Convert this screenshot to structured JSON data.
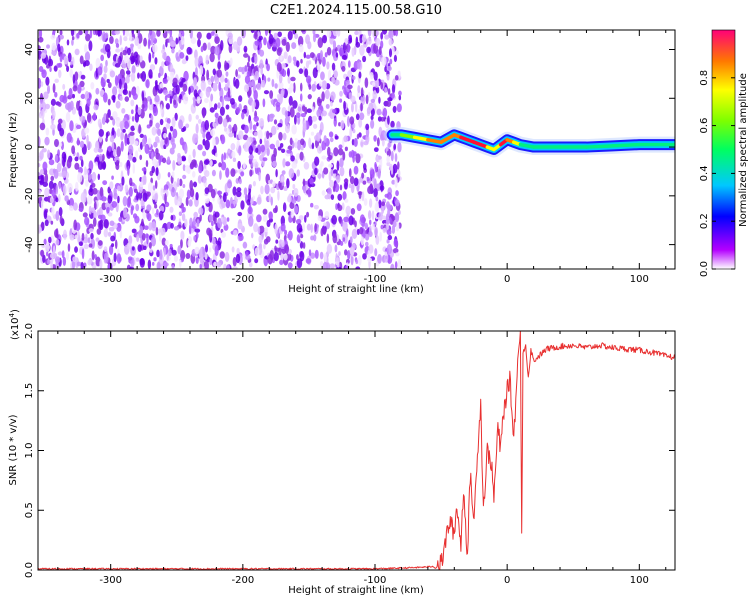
{
  "title": "C2E1.2024.115.00.58.G10",
  "chart_data": [
    {
      "type": "heatmap",
      "xlabel": "Height of straight line (km)",
      "ylabel": "Frequency (Hz)",
      "xlim": [
        -355,
        127
      ],
      "ylim": [
        -50,
        48
      ],
      "xticks": [
        -300,
        -200,
        -100,
        0,
        100
      ],
      "xtick_labels": [
        "-300",
        "-200",
        "-100",
        "0",
        "100"
      ],
      "yticks": [
        -40,
        -20,
        0,
        20,
        40
      ],
      "ytick_labels": [
        "-40",
        "-20",
        "0",
        "20",
        "40"
      ],
      "noise_region_x": [
        -355,
        -87
      ],
      "ridge": {
        "x": [
          -87,
          -80,
          -70,
          -60,
          -50,
          -40,
          -35,
          -30,
          -25,
          -20,
          -15,
          -10,
          -5,
          0,
          5,
          10,
          20,
          40,
          60,
          80,
          100,
          127
        ],
        "y": [
          5,
          5,
          4,
          3,
          2,
          5,
          4,
          3,
          2,
          1,
          0,
          -1,
          1,
          3,
          2,
          1,
          0,
          0,
          0,
          0.5,
          1,
          1
        ],
        "amp": [
          0.45,
          0.55,
          0.7,
          0.8,
          0.9,
          0.85,
          0.9,
          0.95,
          0.9,
          1.0,
          0.85,
          0.7,
          0.9,
          0.95,
          0.85,
          0.6,
          0.5,
          0.45,
          0.45,
          0.45,
          0.45,
          0.45
        ]
      },
      "colorbar": {
        "label": "Normalized spectral amplitude",
        "range": [
          0,
          1
        ],
        "ticks": [
          0,
          0.2,
          0.4,
          0.6,
          0.8
        ],
        "tick_labels": [
          "0.0",
          "0.2",
          "0.4",
          "0.6",
          "0.8"
        ]
      }
    },
    {
      "type": "line",
      "xlabel": "Height of straight line (km)",
      "ylabel": "SNR (10 * v/v)",
      "exponent_label": "(x10",
      "exponent_power": "4",
      "exponent_close": ")",
      "xlim": [
        -355,
        127
      ],
      "ylim": [
        0,
        2.0
      ],
      "xticks": [
        -300,
        -200,
        -100,
        0,
        100
      ],
      "xtick_labels": [
        "-300",
        "-200",
        "-100",
        "0",
        "100"
      ],
      "yticks": [
        0,
        0.5,
        1.0,
        1.5,
        2.0
      ],
      "ytick_labels": [
        "0.0",
        "0.5",
        "1.0",
        "1.5",
        "2.0"
      ],
      "series_color": "#e83030",
      "x": [
        -355,
        -300,
        -250,
        -200,
        -150,
        -100,
        -70,
        -55,
        -50,
        -47,
        -45,
        -43,
        -40,
        -38,
        -35,
        -33,
        -30,
        -28,
        -25,
        -23,
        -20,
        -18,
        -15,
        -12,
        -10,
        -7,
        -5,
        -3,
        0,
        2,
        5,
        8,
        10,
        11,
        12,
        14,
        16,
        18,
        20,
        25,
        30,
        40,
        50,
        60,
        70,
        80,
        90,
        100,
        110,
        120,
        127
      ],
      "y": [
        0.01,
        0.01,
        0.01,
        0.01,
        0.01,
        0.01,
        0.02,
        0.03,
        0.05,
        0.2,
        0.35,
        0.4,
        0.3,
        0.55,
        0.2,
        0.7,
        0.1,
        0.8,
        0.4,
        0.9,
        1.4,
        0.5,
        1.0,
        0.9,
        0.6,
        1.2,
        1.0,
        1.3,
        1.5,
        1.6,
        1.1,
        1.75,
        2.0,
        0.3,
        1.8,
        1.9,
        1.6,
        1.85,
        1.75,
        1.8,
        1.85,
        1.87,
        1.88,
        1.86,
        1.88,
        1.86,
        1.85,
        1.84,
        1.82,
        1.79,
        1.78
      ]
    }
  ]
}
